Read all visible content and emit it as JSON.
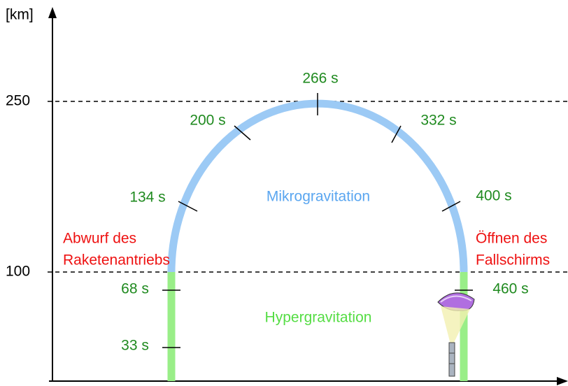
{
  "axis": {
    "unit": "[km]",
    "levels": [
      "250",
      "100"
    ]
  },
  "time_labels": [
    "266 s",
    "200 s",
    "332 s",
    "134 s",
    "400 s",
    "68 s",
    "33 s",
    "460 s"
  ],
  "phases": [
    "Mikrogravitation",
    "Hypergravitation"
  ],
  "events": [
    [
      "Abwurf des",
      "Raketenantriebs"
    ],
    [
      "Öffnen des",
      "Fallschirms"
    ]
  ]
}
